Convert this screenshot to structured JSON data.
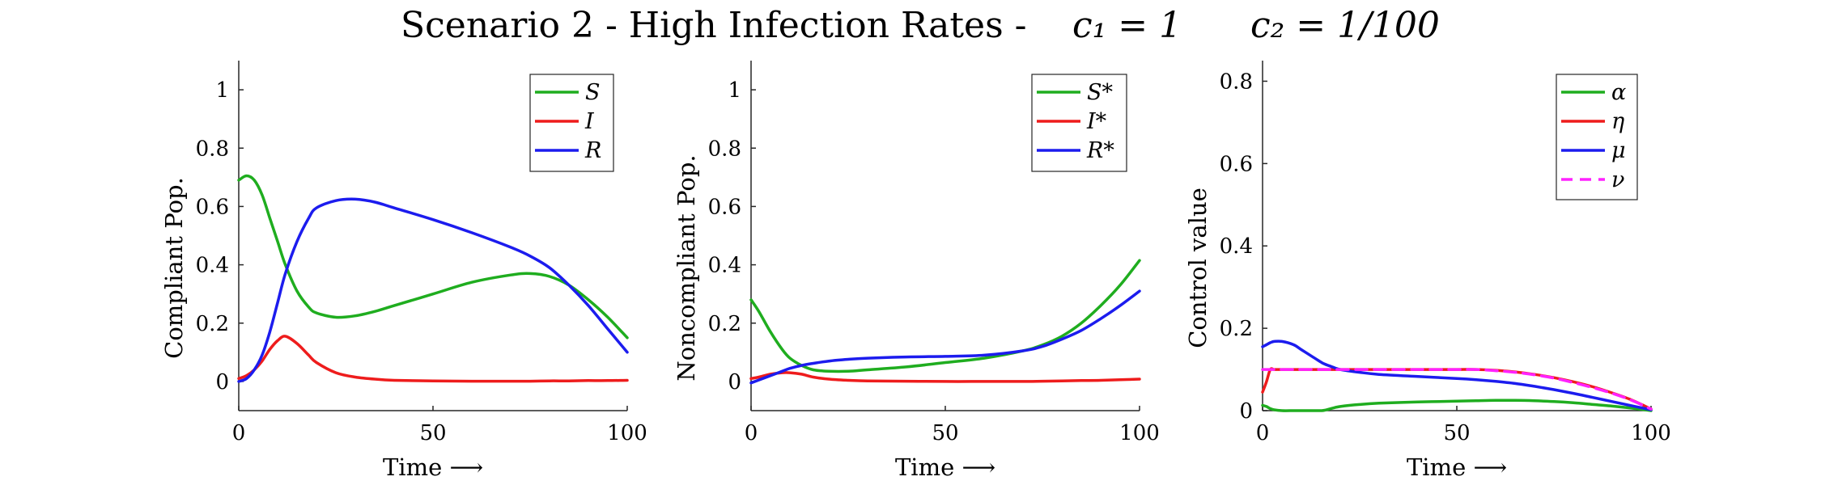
{
  "figure": {
    "title": "Scenario 2 - High Infection Rates -",
    "param1": "c₁ = 1",
    "param2": "c₂ = 1/100"
  },
  "chart_data": [
    {
      "type": "line",
      "xlabel": "Time ⟶",
      "ylabel": "Compliant Pop.",
      "xlim": [
        0,
        100
      ],
      "ylim": [
        -0.1,
        1.1
      ],
      "xticks": [
        0,
        50,
        100
      ],
      "yticks": [
        0,
        0.2,
        0.4,
        0.6,
        0.8,
        1
      ],
      "grid": false,
      "legend_position": "top-right",
      "x": [
        0,
        2,
        4,
        6,
        8,
        10,
        12,
        15,
        18,
        20,
        25,
        30,
        35,
        40,
        50,
        60,
        70,
        75,
        80,
        85,
        90,
        95,
        100
      ],
      "series": [
        {
          "name": "S",
          "color": "#1fad1f",
          "values": [
            0.69,
            0.705,
            0.69,
            0.64,
            0.56,
            0.48,
            0.4,
            0.31,
            0.255,
            0.235,
            0.22,
            0.225,
            0.24,
            0.26,
            0.3,
            0.34,
            0.365,
            0.37,
            0.36,
            0.33,
            0.28,
            0.22,
            0.15
          ]
        },
        {
          "name": "I",
          "color": "#ee1c1c",
          "values": [
            0.01,
            0.02,
            0.04,
            0.07,
            0.11,
            0.14,
            0.155,
            0.13,
            0.09,
            0.065,
            0.03,
            0.015,
            0.008,
            0.004,
            0.002,
            0.001,
            0.001,
            0.001,
            0.002,
            0.002,
            0.003,
            0.003,
            0.004
          ]
        },
        {
          "name": "R",
          "color": "#1c1cee",
          "values": [
            0.0,
            0.01,
            0.04,
            0.09,
            0.17,
            0.27,
            0.37,
            0.48,
            0.56,
            0.595,
            0.62,
            0.625,
            0.615,
            0.595,
            0.555,
            0.51,
            0.46,
            0.43,
            0.39,
            0.33,
            0.26,
            0.18,
            0.1
          ]
        }
      ]
    },
    {
      "type": "line",
      "xlabel": "Time ⟶",
      "ylabel": "Noncompliant Pop.",
      "xlim": [
        0,
        100
      ],
      "ylim": [
        -0.1,
        1.1
      ],
      "xticks": [
        0,
        50,
        100
      ],
      "yticks": [
        0,
        0.2,
        0.4,
        0.6,
        0.8,
        1
      ],
      "grid": false,
      "legend_position": "top-right",
      "x": [
        0,
        2,
        5,
        8,
        10,
        13,
        16,
        20,
        25,
        30,
        40,
        50,
        60,
        70,
        75,
        80,
        85,
        90,
        95,
        100
      ],
      "series": [
        {
          "name": "S*",
          "color": "#1fad1f",
          "values": [
            0.28,
            0.24,
            0.17,
            0.11,
            0.08,
            0.055,
            0.04,
            0.035,
            0.035,
            0.04,
            0.05,
            0.065,
            0.08,
            0.105,
            0.125,
            0.155,
            0.2,
            0.26,
            0.33,
            0.415
          ]
        },
        {
          "name": "I*",
          "color": "#ee1c1c",
          "values": [
            0.01,
            0.015,
            0.025,
            0.03,
            0.03,
            0.025,
            0.015,
            0.008,
            0.004,
            0.002,
            0.001,
            0.0,
            0.0,
            0.0,
            0.001,
            0.002,
            0.003,
            0.004,
            0.006,
            0.008
          ]
        },
        {
          "name": "R*",
          "color": "#1c1cee",
          "values": [
            -0.005,
            0.005,
            0.02,
            0.035,
            0.045,
            0.055,
            0.062,
            0.07,
            0.076,
            0.08,
            0.084,
            0.086,
            0.09,
            0.105,
            0.12,
            0.145,
            0.175,
            0.215,
            0.26,
            0.31
          ]
        }
      ]
    },
    {
      "type": "line",
      "xlabel": "Time ⟶",
      "ylabel": "Control value",
      "xlim": [
        0,
        100
      ],
      "ylim": [
        0,
        0.85
      ],
      "xticks": [
        0,
        50,
        100
      ],
      "yticks": [
        0,
        0.2,
        0.4,
        0.6,
        0.8
      ],
      "grid": false,
      "legend_position": "top-right",
      "x": [
        0,
        1,
        2,
        3,
        5,
        8,
        10,
        13,
        15,
        16,
        18,
        20,
        25,
        30,
        40,
        50,
        55,
        60,
        65,
        70,
        75,
        80,
        85,
        90,
        95,
        100
      ],
      "series": [
        {
          "name": "α",
          "color": "#1fad1f",
          "values": [
            0.013,
            0.01,
            0.005,
            0.002,
            0.0,
            0.0,
            0.0,
            0.0,
            0.0,
            0.001,
            0.006,
            0.01,
            0.015,
            0.018,
            0.021,
            0.023,
            0.024,
            0.025,
            0.025,
            0.024,
            0.022,
            0.019,
            0.015,
            0.011,
            0.006,
            0.0
          ]
        },
        {
          "name": "η",
          "color": "#ee1c1c",
          "values": [
            0.045,
            0.07,
            0.1,
            0.1,
            0.1,
            0.1,
            0.1,
            0.1,
            0.1,
            0.1,
            0.1,
            0.1,
            0.1,
            0.1,
            0.1,
            0.1,
            0.1,
            0.098,
            0.094,
            0.088,
            0.08,
            0.07,
            0.058,
            0.043,
            0.026,
            0.004
          ]
        },
        {
          "name": "μ",
          "color": "#1c1cee",
          "values": [
            0.155,
            0.16,
            0.165,
            0.168,
            0.168,
            0.16,
            0.148,
            0.13,
            0.118,
            0.113,
            0.106,
            0.1,
            0.093,
            0.088,
            0.083,
            0.078,
            0.075,
            0.071,
            0.066,
            0.059,
            0.051,
            0.042,
            0.032,
            0.022,
            0.012,
            0.002
          ]
        },
        {
          "name": "ν",
          "color": "#ff22ff",
          "dashed": true,
          "values": [
            0.1,
            0.1,
            0.1,
            0.1,
            0.1,
            0.1,
            0.1,
            0.1,
            0.1,
            0.1,
            0.1,
            0.1,
            0.1,
            0.1,
            0.1,
            0.1,
            0.1,
            0.097,
            0.093,
            0.087,
            0.079,
            0.068,
            0.056,
            0.042,
            0.025,
            0.004
          ]
        }
      ]
    }
  ]
}
